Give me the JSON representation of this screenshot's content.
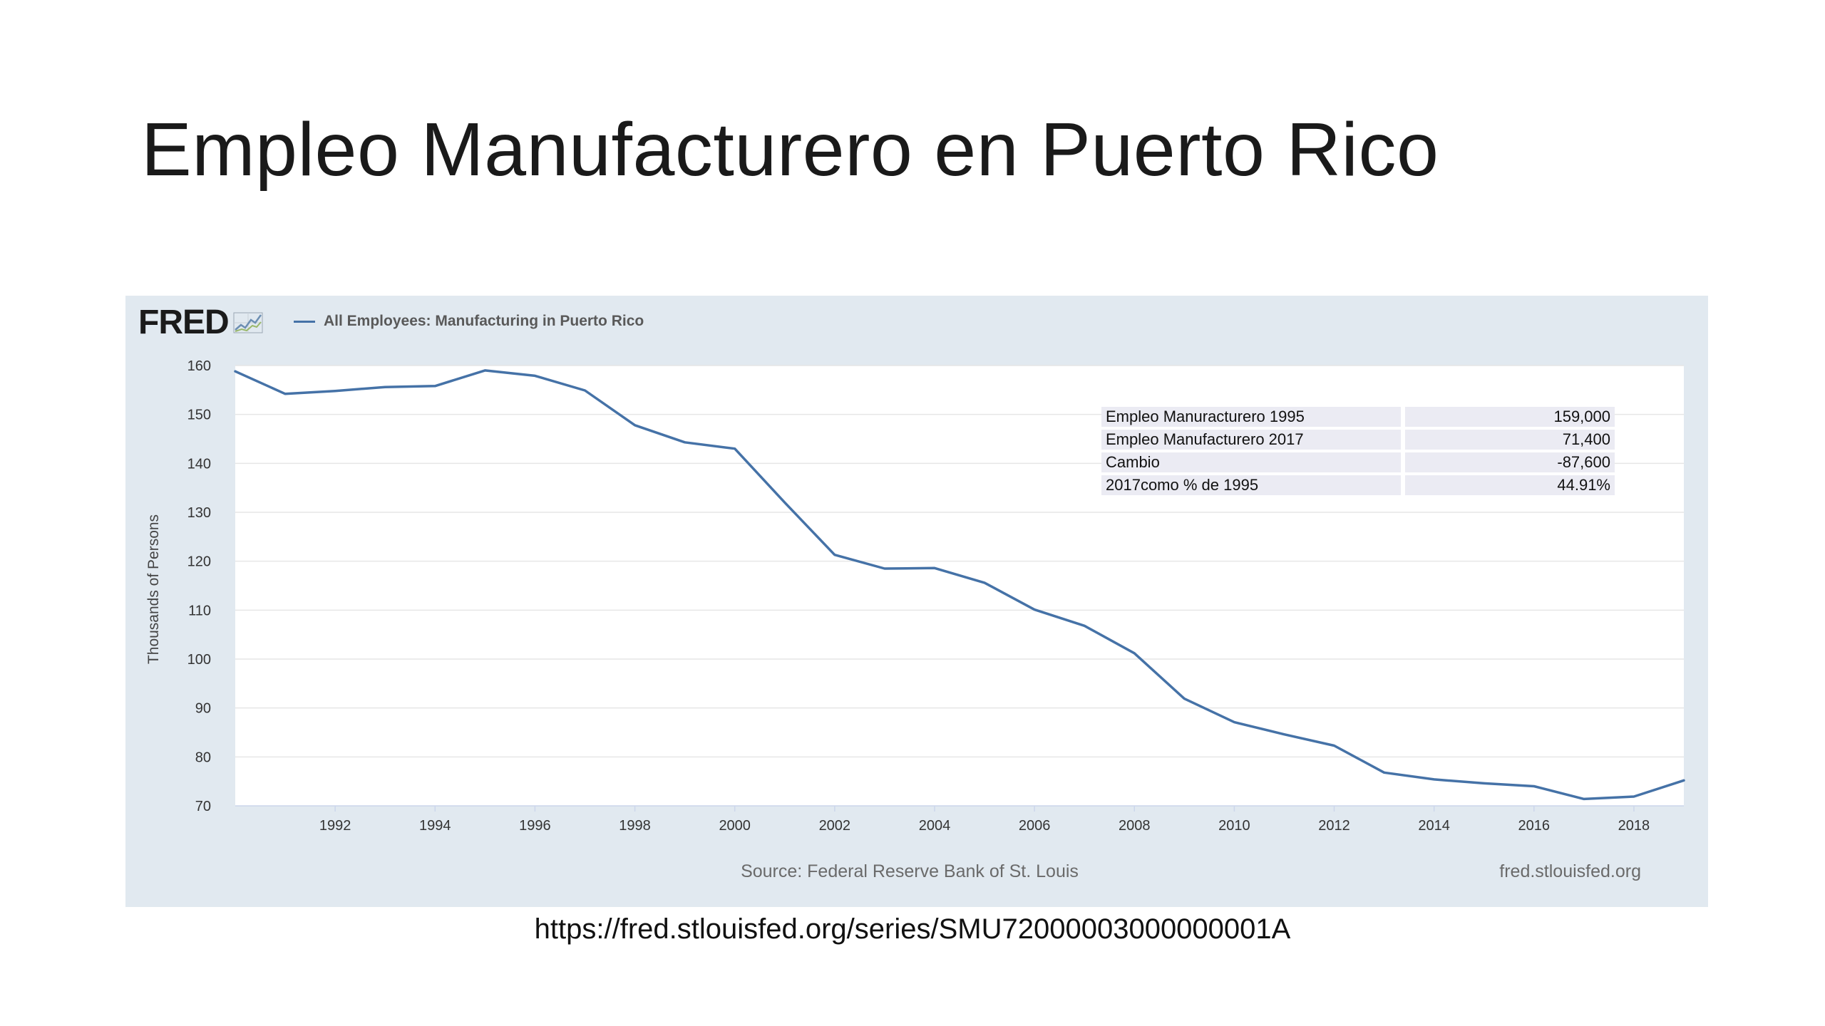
{
  "slide": {
    "title": "Empleo Manufacturero en Puerto Rico",
    "url": "https://fred.stlouisfed.org/series/SMU72000003000000001A"
  },
  "fred": {
    "logo": "FRED",
    "logo_icon": "line-graph-icon",
    "source": "Source: Federal Reserve Bank of St. Louis",
    "site": "fred.stlouisfed.org"
  },
  "colors": {
    "panel_bg": "#e1e9f0",
    "plot_bg": "#ffffff",
    "series_line": "#4572a7",
    "gridline": "#e6e6e6",
    "table_cell": "#ebebf3"
  },
  "summary_table": {
    "rows": [
      {
        "label": "Empleo Manuracturero 1995",
        "value": "159,000"
      },
      {
        "label": "Empleo Manufacturero 2017",
        "value": "71,400"
      },
      {
        "label": "Cambio",
        "value": "-87,600"
      },
      {
        "label": "2017como % de 1995",
        "value": "44.91%"
      }
    ]
  },
  "chart_data": {
    "type": "line",
    "title": "",
    "xlabel": "",
    "ylabel": "Thousands of Persons",
    "ylim": [
      70,
      160
    ],
    "xlim": [
      1990,
      2019
    ],
    "grid": true,
    "legend_position": "top-left",
    "yticks": [
      70,
      80,
      90,
      100,
      110,
      120,
      130,
      140,
      150,
      160
    ],
    "xticks": [
      1992,
      1994,
      1996,
      1998,
      2000,
      2002,
      2004,
      2006,
      2008,
      2010,
      2012,
      2014,
      2016,
      2018
    ],
    "series": [
      {
        "name": "All Employees: Manufacturing in Puerto Rico",
        "x": [
          1990,
          1991,
          1992,
          1993,
          1994,
          1995,
          1996,
          1997,
          1998,
          1999,
          2000,
          2001,
          2002,
          2003,
          2004,
          2005,
          2006,
          2007,
          2008,
          2009,
          2010,
          2011,
          2012,
          2013,
          2014,
          2015,
          2016,
          2017,
          2018,
          2019
        ],
        "values": [
          158.8,
          154.2,
          154.8,
          155.6,
          155.8,
          159.0,
          157.9,
          154.9,
          147.8,
          144.3,
          143.0,
          132.0,
          121.3,
          118.5,
          118.6,
          115.6,
          110.1,
          106.8,
          101.2,
          91.9,
          87.1,
          84.6,
          82.3,
          76.8,
          75.4,
          74.6,
          74.0,
          71.4,
          71.9,
          75.2
        ]
      }
    ]
  }
}
